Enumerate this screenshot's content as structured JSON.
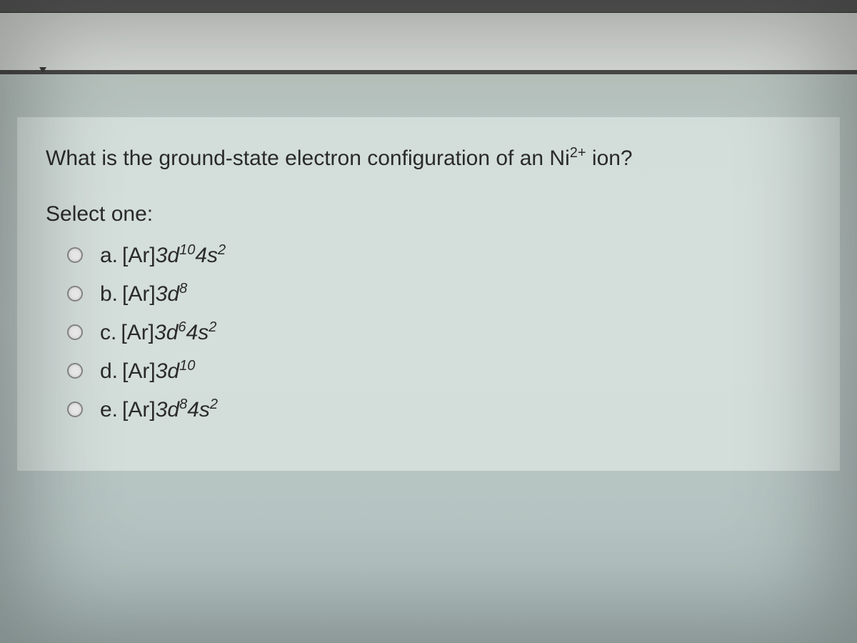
{
  "colors": {
    "panel_bg": "rgba(220, 230, 226, 0.75)",
    "text": "#2a2a2a",
    "radio_border": "#888"
  },
  "question": {
    "prefix": "What is the ground-state electron configuration of an Ni",
    "ion_charge": "2+",
    "suffix": " ion?"
  },
  "select_label": "Select one:",
  "options": [
    {
      "letter": "a.",
      "core": "[Ar]",
      "parts": [
        {
          "orb": "3d",
          "sup": "10"
        },
        {
          "orb": "4s",
          "sup": "2"
        }
      ]
    },
    {
      "letter": "b.",
      "core": "[Ar]",
      "parts": [
        {
          "orb": "3d",
          "sup": "8"
        }
      ]
    },
    {
      "letter": "c.",
      "core": "[Ar]",
      "parts": [
        {
          "orb": "3d",
          "sup": "6"
        },
        {
          "orb": "4s",
          "sup": "2"
        }
      ]
    },
    {
      "letter": "d.",
      "core": "[Ar]",
      "parts": [
        {
          "orb": "3d",
          "sup": "10"
        }
      ]
    },
    {
      "letter": "e.",
      "core": "[Ar]",
      "parts": [
        {
          "orb": "3d",
          "sup": "8"
        },
        {
          "orb": "4s",
          "sup": "2"
        }
      ]
    }
  ]
}
